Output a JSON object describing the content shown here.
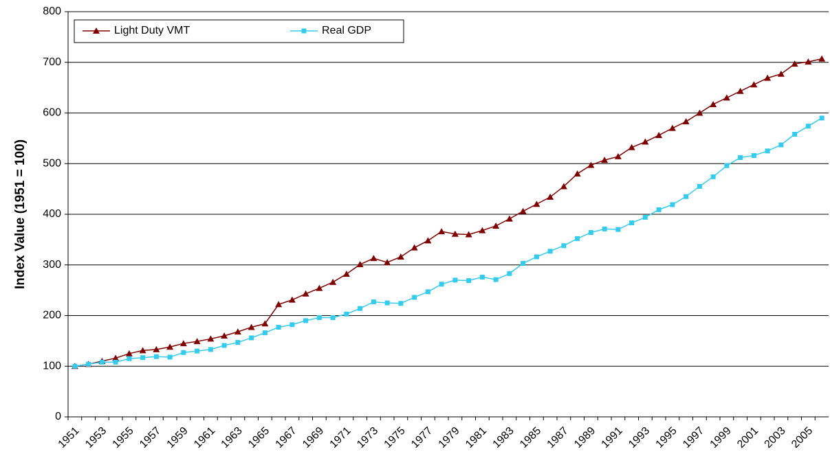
{
  "chart_data": {
    "type": "line",
    "y_label": "Index Value (1951 = 100)",
    "categories": [
      "1951",
      null,
      "1953",
      null,
      "1955",
      null,
      "1957",
      null,
      "1959",
      null,
      "1961",
      null,
      "1963",
      null,
      "1965",
      null,
      "1967",
      null,
      "1969",
      null,
      "1971",
      null,
      "1973",
      null,
      "1975",
      null,
      "1977",
      null,
      "1979",
      null,
      "1981",
      null,
      "1983",
      null,
      "1985",
      null,
      "1987",
      null,
      "1989",
      null,
      "1991",
      null,
      "1993",
      null,
      "1995",
      null,
      "1997",
      null,
      "1999",
      null,
      "2001",
      null,
      "2003",
      null,
      "2005",
      null
    ],
    "series": [
      {
        "name": "Light Duty VMT",
        "color": "#800000",
        "marker": "triangle",
        "values": [
          100,
          104,
          110,
          116,
          125,
          131,
          133,
          138,
          145,
          149,
          154,
          160,
          168,
          177,
          184,
          222,
          231,
          243,
          254,
          266,
          282,
          301,
          313,
          305,
          316,
          334,
          348,
          366,
          361,
          360,
          368,
          377,
          391,
          406,
          420,
          434,
          455,
          480,
          497,
          507,
          514,
          532,
          543,
          556,
          570,
          583,
          600,
          617,
          630,
          643,
          656,
          669,
          677,
          697,
          701,
          707
        ]
      },
      {
        "name": "Real GDP",
        "color": "#33ccee",
        "marker": "square",
        "values": [
          100,
          104,
          108,
          108,
          115,
          117,
          119,
          118,
          127,
          130,
          133,
          141,
          147,
          156,
          166,
          177,
          182,
          190,
          196,
          196,
          203,
          214,
          227,
          225,
          224,
          236,
          247,
          262,
          270,
          269,
          276,
          271,
          283,
          303,
          316,
          327,
          338,
          352,
          364,
          371,
          370,
          383,
          394,
          409,
          419,
          435,
          455,
          474,
          496,
          512,
          516,
          525,
          537,
          558,
          574,
          590
        ]
      }
    ],
    "ylim": [
      0,
      800
    ],
    "yticks": [
      0,
      100,
      200,
      300,
      400,
      500,
      600,
      700,
      800
    ],
    "grid": true,
    "legend": "top-left"
  }
}
